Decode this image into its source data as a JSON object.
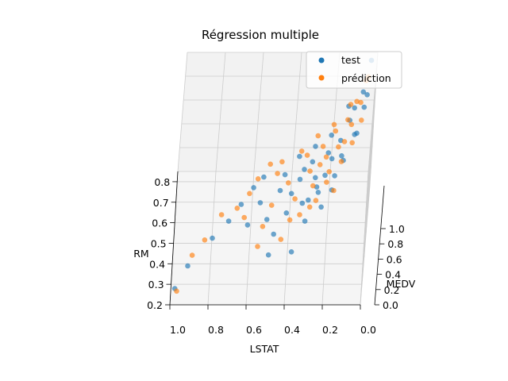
{
  "chart_data": {
    "type": "scatter",
    "title": "Régression multiple",
    "xlabel": "LSTAT",
    "ylabel": "RM",
    "zlabel": "MEDV",
    "x_ticks": [
      "1.0",
      "0.8",
      "0.6",
      "0.4",
      "0.2",
      "0.0"
    ],
    "y_ticks": [
      "0.2",
      "0.3",
      "0.4",
      "0.5",
      "0.6",
      "0.7",
      "0.8"
    ],
    "z_ticks": [
      "0.0",
      "0.2",
      "0.4",
      "0.6",
      "0.8",
      "1.0"
    ],
    "xlim": [
      0,
      1
    ],
    "ylim": [
      0.2,
      0.85
    ],
    "zlim": [
      0,
      1
    ],
    "grid": true,
    "legend_position": "top-right",
    "colors": {
      "test": "#1f77b4",
      "prediction": "#ff7f0e"
    },
    "series": [
      {
        "name": "test",
        "points": [
          [
            0.98,
            0.25,
            0.05
          ],
          [
            0.92,
            0.32,
            0.12
          ],
          [
            0.8,
            0.42,
            0.18
          ],
          [
            0.72,
            0.48,
            0.22
          ],
          [
            0.66,
            0.55,
            0.24
          ],
          [
            0.6,
            0.62,
            0.26
          ],
          [
            0.56,
            0.57,
            0.22
          ],
          [
            0.52,
            0.5,
            0.2
          ],
          [
            0.48,
            0.44,
            0.18
          ],
          [
            0.44,
            0.66,
            0.3
          ],
          [
            0.4,
            0.58,
            0.28
          ],
          [
            0.36,
            0.62,
            0.33
          ],
          [
            0.34,
            0.55,
            0.25
          ],
          [
            0.32,
            0.48,
            0.22
          ],
          [
            0.3,
            0.7,
            0.34
          ],
          [
            0.28,
            0.64,
            0.31
          ],
          [
            0.26,
            0.58,
            0.29
          ],
          [
            0.24,
            0.52,
            0.27
          ],
          [
            0.22,
            0.72,
            0.38
          ],
          [
            0.2,
            0.68,
            0.4
          ],
          [
            0.18,
            0.62,
            0.36
          ],
          [
            0.16,
            0.74,
            0.45
          ],
          [
            0.14,
            0.66,
            0.42
          ],
          [
            0.12,
            0.78,
            0.55
          ],
          [
            0.1,
            0.8,
            0.62
          ],
          [
            0.08,
            0.7,
            0.58
          ],
          [
            0.06,
            0.82,
            0.72
          ],
          [
            0.04,
            0.76,
            0.8
          ],
          [
            0.03,
            0.84,
            0.95
          ],
          [
            0.38,
            0.4,
            0.1
          ],
          [
            0.5,
            0.35,
            0.16
          ],
          [
            0.62,
            0.45,
            0.24
          ],
          [
            0.46,
            0.6,
            0.27
          ],
          [
            0.27,
            0.6,
            0.3
          ],
          [
            0.23,
            0.64,
            0.33
          ],
          [
            0.34,
            0.68,
            0.31
          ],
          [
            0.19,
            0.58,
            0.31
          ],
          [
            0.15,
            0.7,
            0.39
          ],
          [
            0.42,
            0.52,
            0.22
          ],
          [
            0.31,
            0.56,
            0.26
          ],
          [
            0.09,
            0.74,
            0.5
          ],
          [
            0.05,
            0.78,
            0.66
          ],
          [
            0.13,
            0.82,
            0.6
          ],
          [
            0.21,
            0.76,
            0.46
          ],
          [
            0.29,
            0.74,
            0.4
          ],
          [
            0.37,
            0.72,
            0.35
          ],
          [
            0.55,
            0.66,
            0.28
          ]
        ]
      },
      {
        "name": "prédiction",
        "points": [
          [
            0.97,
            0.22,
            0.08
          ],
          [
            0.9,
            0.36,
            0.14
          ],
          [
            0.84,
            0.4,
            0.2
          ],
          [
            0.76,
            0.5,
            0.24
          ],
          [
            0.68,
            0.52,
            0.26
          ],
          [
            0.62,
            0.58,
            0.28
          ],
          [
            0.58,
            0.64,
            0.3
          ],
          [
            0.54,
            0.46,
            0.21
          ],
          [
            0.5,
            0.54,
            0.25
          ],
          [
            0.46,
            0.7,
            0.34
          ],
          [
            0.42,
            0.62,
            0.3
          ],
          [
            0.38,
            0.56,
            0.27
          ],
          [
            0.35,
            0.5,
            0.24
          ],
          [
            0.33,
            0.72,
            0.36
          ],
          [
            0.31,
            0.66,
            0.33
          ],
          [
            0.29,
            0.6,
            0.31
          ],
          [
            0.27,
            0.54,
            0.29
          ],
          [
            0.25,
            0.74,
            0.4
          ],
          [
            0.23,
            0.7,
            0.38
          ],
          [
            0.21,
            0.64,
            0.36
          ],
          [
            0.19,
            0.78,
            0.46
          ],
          [
            0.17,
            0.72,
            0.43
          ],
          [
            0.15,
            0.66,
            0.41
          ],
          [
            0.13,
            0.8,
            0.52
          ],
          [
            0.11,
            0.76,
            0.55
          ],
          [
            0.09,
            0.82,
            0.64
          ],
          [
            0.07,
            0.78,
            0.7
          ],
          [
            0.05,
            0.84,
            0.78
          ],
          [
            0.04,
            0.8,
            0.88
          ],
          [
            0.44,
            0.42,
            0.17
          ],
          [
            0.56,
            0.38,
            0.18
          ],
          [
            0.64,
            0.48,
            0.25
          ],
          [
            0.48,
            0.66,
            0.31
          ],
          [
            0.26,
            0.68,
            0.35
          ],
          [
            0.22,
            0.6,
            0.34
          ],
          [
            0.36,
            0.74,
            0.36
          ],
          [
            0.18,
            0.56,
            0.34
          ],
          [
            0.14,
            0.74,
            0.44
          ],
          [
            0.4,
            0.48,
            0.23
          ],
          [
            0.3,
            0.52,
            0.27
          ],
          [
            0.1,
            0.7,
            0.5
          ],
          [
            0.06,
            0.74,
            0.62
          ],
          [
            0.12,
            0.84,
            0.58
          ],
          [
            0.2,
            0.8,
            0.48
          ],
          [
            0.28,
            0.78,
            0.42
          ],
          [
            0.52,
            0.7,
            0.32
          ]
        ]
      }
    ]
  }
}
